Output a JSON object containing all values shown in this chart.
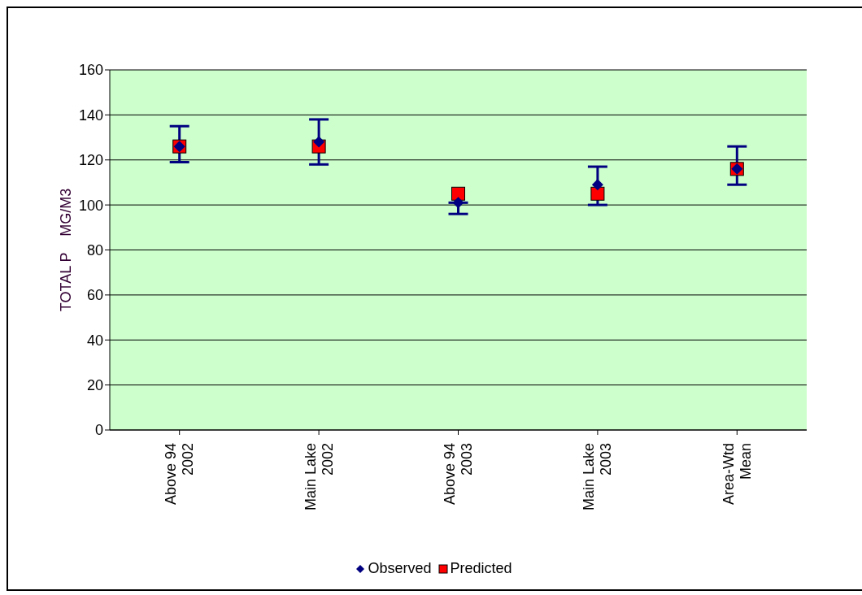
{
  "chart_data": {
    "type": "scatter",
    "ylabel": "TOTAL P    MG/M3",
    "categories": [
      "Above 94\n2002",
      "Main Lake\n2002",
      "Above 94\n2003",
      "Main Lake\n2003",
      "Area-Wtd\nMean"
    ],
    "series": [
      {
        "name": "Observed",
        "color": "#000080",
        "marker": "diamond",
        "values": [
          126,
          128,
          101,
          109,
          116
        ],
        "errors": [
          [
            119,
            135
          ],
          [
            118,
            138
          ],
          [
            96,
            101
          ],
          [
            100,
            117
          ],
          [
            109,
            126
          ]
        ]
      },
      {
        "name": "Predicted",
        "color": "#ff0000",
        "marker": "square",
        "values": [
          126,
          126,
          105,
          105,
          116
        ]
      }
    ],
    "ylim": [
      0,
      160
    ],
    "yticks": [
      0,
      20,
      40,
      60,
      80,
      100,
      120,
      140,
      160
    ],
    "grid": "y",
    "legend": "bottom"
  }
}
